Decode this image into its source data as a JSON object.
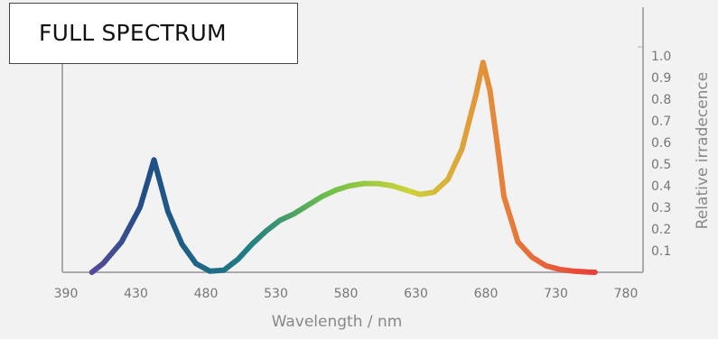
{
  "title": "FULL SPECTRUM",
  "colors": {
    "background": "#f2f2f2",
    "axis": "#aaaaaa",
    "text": "#777777",
    "curve_violet": "#5b4a9a",
    "curve_blue": "#1f4e86",
    "curve_teal": "#1f7d86",
    "curve_green": "#6fbf4a",
    "curve_yellow": "#cdd33a",
    "curve_orange": "#e58a3a",
    "curve_red": "#e8413a"
  },
  "chart_data": {
    "type": "line",
    "title": "FULL SPECTRUM",
    "xlabel": "Wavelength / nm",
    "ylabel": "Relative irradecence",
    "xlim": [
      390,
      780
    ],
    "ylim": [
      0,
      1.1
    ],
    "x_ticks": [
      "390",
      "430",
      "480",
      "530",
      "580",
      "630",
      "680",
      "730",
      "780"
    ],
    "y_ticks": [
      "0.1",
      "0.2",
      "0.3",
      "0.4",
      "0.5",
      "0.6",
      "0.7",
      "0.8",
      "0.9",
      "1.0"
    ],
    "y_axis_position": "right",
    "grid": false,
    "series": [
      {
        "x": [
          404,
          410,
          420,
          430,
          436,
          440,
          445,
          450,
          460,
          470,
          480,
          490,
          500,
          510,
          520,
          530,
          540,
          550,
          560,
          570,
          580,
          590,
          600,
          610,
          620,
          630,
          640,
          650,
          660,
          670,
          675,
          680,
          685,
          690,
          700,
          710,
          720,
          730,
          740,
          750,
          755
        ],
        "y": [
          0.0,
          0.04,
          0.14,
          0.3,
          0.43,
          0.52,
          0.4,
          0.28,
          0.13,
          0.04,
          0.005,
          0.01,
          0.06,
          0.13,
          0.19,
          0.24,
          0.27,
          0.31,
          0.35,
          0.38,
          0.4,
          0.41,
          0.41,
          0.4,
          0.38,
          0.36,
          0.37,
          0.43,
          0.57,
          0.82,
          0.97,
          0.84,
          0.6,
          0.35,
          0.14,
          0.07,
          0.03,
          0.013,
          0.005,
          0.001,
          0.0
        ]
      }
    ]
  }
}
